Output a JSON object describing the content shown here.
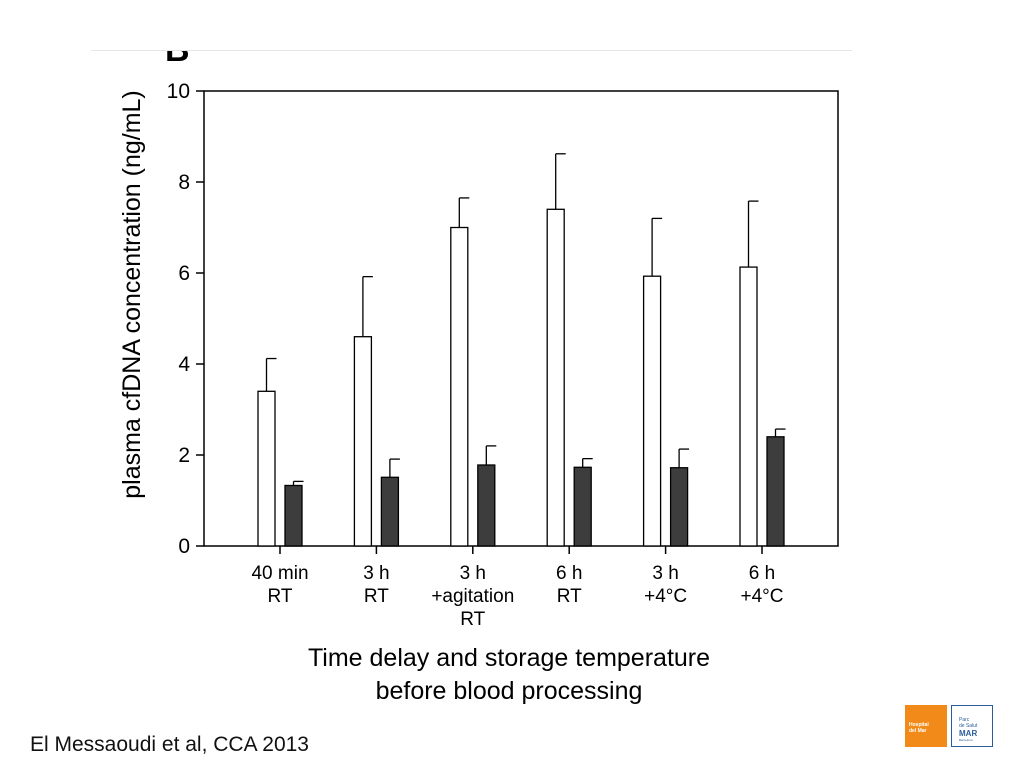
{
  "panel_letter": "B",
  "citation": "El Messaoudi et al, CCA 2013",
  "logos": {
    "hospital": [
      "Hospital",
      "del Mar"
    ],
    "parc_lines": [
      "Parc",
      "de Salut"
    ],
    "parc_mark": "MAR",
    "parc_sub": "Barcelona"
  },
  "colors": {
    "bar_open": "#ffffff",
    "bar_filled": "#3d3d3d",
    "axis": "#000000",
    "brand_orange": "#f28a1a",
    "brand_blue": "#2a5e9b"
  },
  "chart_data": {
    "type": "bar",
    "ylabel": "plasma cfDNA concentration (ng/mL)",
    "xlabel": [
      "Time delay and storage temperature",
      "before blood processing"
    ],
    "ylim": [
      0,
      10
    ],
    "yticks": [
      0,
      2,
      4,
      6,
      8,
      10
    ],
    "grid": false,
    "legend": "none",
    "categories": [
      [
        "40 min",
        "RT"
      ],
      [
        "3 h",
        "RT"
      ],
      [
        "3 h",
        "+agitation",
        "RT"
      ],
      [
        "6 h",
        "RT"
      ],
      [
        "3 h",
        "+4°C"
      ],
      [
        "6 h",
        "+4°C"
      ]
    ],
    "series": [
      {
        "style": "open",
        "values": [
          3.4,
          4.6,
          7.0,
          7.4,
          5.93,
          6.13
        ],
        "error_upper": [
          4.12,
          5.92,
          7.65,
          8.62,
          7.2,
          7.58
        ]
      },
      {
        "style": "filled",
        "values": [
          1.33,
          1.51,
          1.78,
          1.73,
          1.72,
          2.4
        ],
        "error_upper": [
          1.42,
          1.91,
          2.2,
          1.92,
          2.13,
          2.57
        ]
      }
    ]
  }
}
